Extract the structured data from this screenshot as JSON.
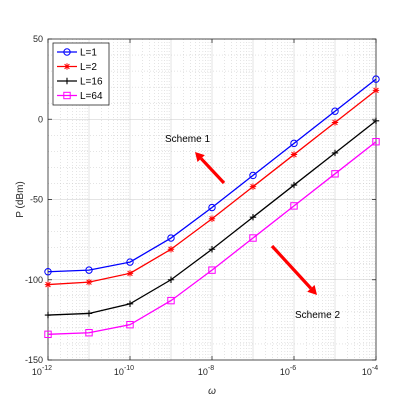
{
  "chart_data": {
    "type": "line",
    "xscale": "log",
    "x": [
      1e-12,
      1e-11,
      1e-10,
      1e-09,
      1e-08,
      1e-07,
      1e-06,
      1e-05,
      0.0001
    ],
    "xlim": [
      1e-12,
      0.0001
    ],
    "ylim": [
      -150,
      50
    ],
    "xlabel": "ω",
    "ylabel": "P (dBm)",
    "grid": true,
    "legend_position": "top-left",
    "x_ticks": [
      {
        "exp": -12,
        "base": "10",
        "sup": "-12"
      },
      {
        "exp": -10,
        "base": "10",
        "sup": "-10"
      },
      {
        "exp": -8,
        "base": "10",
        "sup": "-8"
      },
      {
        "exp": -6,
        "base": "10",
        "sup": "-6"
      },
      {
        "exp": -4,
        "base": "10",
        "sup": "-4"
      }
    ],
    "y_ticks": [
      50,
      0,
      -50,
      -100,
      -150
    ],
    "series": [
      {
        "name": "L=1",
        "color": "#0000ff",
        "marker": "circle",
        "values": [
          -95,
          -94,
          -89,
          -74,
          -55,
          -35,
          -15,
          5,
          25
        ]
      },
      {
        "name": "L=2",
        "color": "#ff0000",
        "marker": "asterisk",
        "values": [
          -103,
          -101.5,
          -96,
          -81,
          -62,
          -42,
          -22,
          -2,
          18
        ]
      },
      {
        "name": "L=16",
        "color": "#000000",
        "marker": "plus",
        "values": [
          -122,
          -121,
          -115,
          -100,
          -81,
          -61,
          -41,
          -21,
          -1
        ]
      },
      {
        "name": "L=64",
        "color": "#ff00ff",
        "marker": "square",
        "values": [
          -134,
          -133,
          -128,
          -113,
          -94,
          -74,
          -54,
          -34,
          -14
        ]
      }
    ],
    "annotations": [
      {
        "text": "Scheme 1",
        "arrow_direction": "up-left"
      },
      {
        "text": "Scheme 2",
        "arrow_direction": "down-right"
      }
    ],
    "annotation_color": "#ff0000"
  }
}
